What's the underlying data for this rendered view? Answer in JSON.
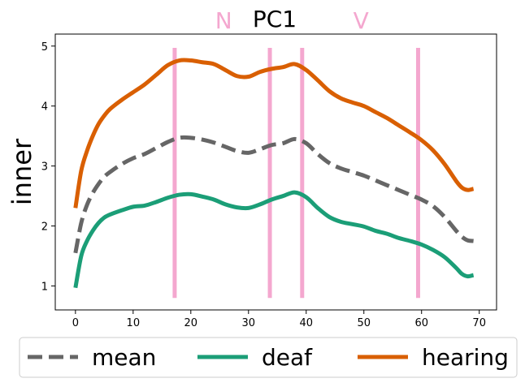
{
  "chart_data": {
    "type": "line",
    "title": "PC1",
    "ylabel": "inner",
    "xlabel": "",
    "xlim": [
      -3.5,
      73
    ],
    "ylim": [
      0.6,
      5.2
    ],
    "xticks": [
      "0",
      "10",
      "20",
      "30",
      "40",
      "50",
      "60",
      "70"
    ],
    "yticks": [
      "1",
      "2",
      "3",
      "4",
      "5"
    ],
    "grid": false,
    "legend_position": "bottom",
    "markers": {
      "color": "#f4a7cf",
      "lines": [
        17.2,
        33.7,
        39.3,
        59.4
      ],
      "y_range": [
        0.8,
        4.97
      ],
      "labels": [
        {
          "text": "N",
          "x": 25.7
        },
        {
          "text": "V",
          "x": 49.5
        }
      ]
    },
    "series": [
      {
        "name": "mean",
        "color": "#666666",
        "dash": true,
        "x": [
          0,
          1,
          2,
          3,
          4,
          5,
          6,
          8,
          10,
          12,
          14,
          16,
          18,
          20,
          22,
          24,
          26,
          28,
          30,
          32,
          34,
          36,
          38,
          40,
          42,
          44,
          46,
          48,
          50,
          52,
          54,
          56,
          58,
          60,
          62,
          64,
          66,
          67,
          68,
          69
        ],
        "y": [
          1.55,
          2.05,
          2.35,
          2.55,
          2.7,
          2.82,
          2.9,
          3.03,
          3.13,
          3.2,
          3.3,
          3.4,
          3.47,
          3.47,
          3.44,
          3.39,
          3.32,
          3.25,
          3.22,
          3.28,
          3.35,
          3.38,
          3.45,
          3.38,
          3.2,
          3.05,
          2.96,
          2.9,
          2.84,
          2.76,
          2.68,
          2.6,
          2.52,
          2.44,
          2.33,
          2.15,
          1.92,
          1.82,
          1.76,
          1.75
        ]
      },
      {
        "name": "deaf",
        "color": "#1b9e77",
        "dash": false,
        "x": [
          0,
          1,
          2,
          3,
          4,
          5,
          6,
          8,
          10,
          12,
          14,
          16,
          18,
          20,
          22,
          24,
          26,
          28,
          30,
          32,
          34,
          36,
          38,
          40,
          42,
          44,
          46,
          48,
          50,
          52,
          54,
          56,
          58,
          60,
          62,
          64,
          66,
          67,
          68,
          69
        ],
        "y": [
          0.97,
          1.5,
          1.75,
          1.92,
          2.05,
          2.14,
          2.19,
          2.26,
          2.32,
          2.34,
          2.4,
          2.47,
          2.52,
          2.53,
          2.49,
          2.44,
          2.36,
          2.31,
          2.3,
          2.36,
          2.44,
          2.5,
          2.56,
          2.48,
          2.3,
          2.15,
          2.07,
          2.03,
          1.99,
          1.92,
          1.87,
          1.8,
          1.75,
          1.69,
          1.6,
          1.48,
          1.3,
          1.2,
          1.16,
          1.18
        ]
      },
      {
        "name": "hearing",
        "color": "#d95f02",
        "dash": false,
        "x": [
          0,
          1,
          2,
          3,
          4,
          5,
          6,
          8,
          10,
          12,
          14,
          16,
          18,
          20,
          22,
          24,
          26,
          28,
          30,
          32,
          34,
          36,
          38,
          40,
          42,
          44,
          46,
          48,
          50,
          52,
          54,
          56,
          58,
          60,
          62,
          64,
          66,
          67,
          68,
          69
        ],
        "y": [
          2.3,
          2.92,
          3.25,
          3.5,
          3.7,
          3.84,
          3.95,
          4.1,
          4.23,
          4.36,
          4.52,
          4.68,
          4.76,
          4.76,
          4.73,
          4.7,
          4.6,
          4.5,
          4.49,
          4.57,
          4.62,
          4.65,
          4.7,
          4.6,
          4.43,
          4.25,
          4.13,
          4.06,
          4.0,
          3.9,
          3.8,
          3.68,
          3.56,
          3.43,
          3.26,
          3.03,
          2.75,
          2.64,
          2.6,
          2.62
        ]
      }
    ]
  }
}
